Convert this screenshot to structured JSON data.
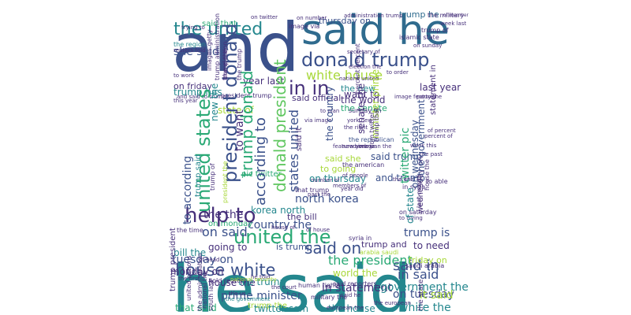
{
  "palette": {
    "purple": "#46307a",
    "indigo": "#3b518b",
    "blue": "#2f6b8e",
    "teal": "#24878e",
    "green": "#2aa975",
    "lime": "#60c760",
    "yellowgreen": "#a8d83a",
    "yellow": "#dfe318"
  },
  "words": [
    {
      "t": "and",
      "c": "indigo",
      "r": 0
    },
    {
      "t": "he said",
      "c": "teal",
      "r": 0
    },
    {
      "t": "said he",
      "c": "blue",
      "r": 0
    },
    {
      "t": "the united",
      "c": "teal",
      "r": 0
    },
    {
      "t": "donald trump",
      "c": "indigo",
      "r": 0
    },
    {
      "t": "white house",
      "c": "yellowgreen",
      "r": 0
    },
    {
      "t": "in in",
      "c": "purple",
      "r": 0
    },
    {
      "t": "united the",
      "c": "green",
      "r": 0
    },
    {
      "t": "house white",
      "c": "indigo",
      "r": 0
    },
    {
      "t": "said on",
      "c": "indigo",
      "r": 0
    },
    {
      "t": "on said",
      "c": "indigo",
      "r": 0
    },
    {
      "t": "said in",
      "c": "indigo",
      "r": 0
    },
    {
      "t": "in said",
      "c": "indigo",
      "r": 0
    },
    {
      "t": "on tuesday",
      "c": "indigo",
      "r": 0
    },
    {
      "t": "white the",
      "c": "teal",
      "r": 0
    },
    {
      "t": "the president",
      "c": "green",
      "r": 0
    },
    {
      "t": "tuesday on",
      "c": "indigo",
      "r": 0
    },
    {
      "t": "country the",
      "c": "indigo",
      "r": 0
    },
    {
      "t": "the the",
      "c": "purple",
      "r": 0
    },
    {
      "t": "prime minister",
      "c": "indigo",
      "r": 0
    },
    {
      "t": "house the",
      "c": "purple",
      "r": 0
    },
    {
      "t": "the trump",
      "c": "teal",
      "r": 0
    },
    {
      "t": "in statement",
      "c": "purple",
      "r": 0
    },
    {
      "t": "world the",
      "c": "yellowgreen",
      "r": 0
    },
    {
      "t": "government the",
      "c": "teal",
      "r": 0
    },
    {
      "t": "it said",
      "c": "yellowgreen",
      "r": 0
    },
    {
      "t": "trump the",
      "c": "yellowgreen",
      "r": 0
    },
    {
      "t": "that said",
      "c": "green",
      "r": 0
    },
    {
      "t": "twitter com",
      "c": "teal",
      "r": 0
    },
    {
      "t": "the house",
      "c": "teal",
      "r": 0
    },
    {
      "t": "to need",
      "c": "purple",
      "r": 0
    },
    {
      "t": "friday on",
      "c": "yellowgreen",
      "r": 0
    },
    {
      "t": "trump is",
      "c": "indigo",
      "r": 0
    },
    {
      "t": "going to",
      "c": "purple",
      "r": 0
    },
    {
      "t": "is trump",
      "c": "indigo",
      "r": 0
    },
    {
      "t": "trump and",
      "c": "purple",
      "r": 0
    },
    {
      "t": "bill the",
      "c": "teal",
      "r": 0
    },
    {
      "t": "monday on",
      "c": "purple",
      "r": 0
    },
    {
      "t": "on monday",
      "c": "green",
      "r": 0
    },
    {
      "t": "the bill",
      "c": "purple",
      "r": 0
    },
    {
      "t": "korea north",
      "c": "teal",
      "r": 0
    },
    {
      "t": "north korea",
      "c": "indigo",
      "r": 0
    },
    {
      "t": "on thursday",
      "c": "teal",
      "r": 0
    },
    {
      "t": "and trump",
      "c": "indigo",
      "r": 0
    },
    {
      "t": "said trump",
      "c": "indigo",
      "r": 0
    },
    {
      "t": "to going",
      "c": "yellowgreen",
      "r": 0
    },
    {
      "t": "said she",
      "c": "yellowgreen",
      "r": 0
    },
    {
      "t": "the world",
      "c": "purple",
      "r": 0
    },
    {
      "t": "the senate",
      "c": "green",
      "r": 0
    },
    {
      "t": "the new",
      "c": "teal",
      "r": 0
    },
    {
      "t": "want to",
      "c": "purple",
      "r": 0
    },
    {
      "t": "said official",
      "c": "purple",
      "r": 0
    },
    {
      "t": "year last",
      "c": "purple",
      "r": 0
    },
    {
      "t": "last year",
      "c": "purple",
      "r": 0
    },
    {
      "t": "on friday",
      "c": "purple",
      "r": 0
    },
    {
      "t": "trump has",
      "c": "teal",
      "r": 0
    },
    {
      "t": "she said",
      "c": "indigo",
      "r": 0
    },
    {
      "t": "thursday on",
      "c": "indigo",
      "r": 0
    },
    {
      "t": "said that",
      "c": "green",
      "r": 0
    },
    {
      "t": "trump he",
      "c": "blue",
      "r": 0
    },
    {
      "t": "of member",
      "c": "purple",
      "r": 0
    },
    {
      "t": "the military",
      "c": "purple",
      "r": 0
    },
    {
      "t": "the region",
      "c": "teal",
      "r": 0
    },
    {
      "t": "president trump",
      "c": "purple",
      "r": 0
    },
    {
      "t": "state of",
      "c": "yellowgreen",
      "r": 0
    },
    {
      "t": "pic twitter",
      "c": "green",
      "r": 0
    },
    {
      "t": "that trump",
      "c": "purple",
      "r": 0
    },
    {
      "t": "american the",
      "c": "purple",
      "r": 0
    },
    {
      "t": "the american",
      "c": "purple",
      "r": 0
    },
    {
      "t": "the republican",
      "c": "indigo",
      "r": 0
    },
    {
      "t": "new york",
      "c": "purple",
      "r": 0
    },
    {
      "t": "york new",
      "c": "purple",
      "r": 0
    },
    {
      "t": "the right",
      "c": "purple",
      "r": 0
    },
    {
      "t": "sunday on",
      "c": "purple",
      "r": 0
    },
    {
      "t": "in syria",
      "c": "purple",
      "r": 0
    },
    {
      "t": "the end",
      "c": "purple",
      "r": 0
    },
    {
      "t": "to able",
      "c": "purple",
      "r": 0
    },
    {
      "t": "year old",
      "c": "purple",
      "r": 0
    },
    {
      "t": "past the",
      "c": "purple",
      "r": 0
    },
    {
      "t": "number of",
      "c": "purple",
      "r": 0
    },
    {
      "t": "members of",
      "c": "purple",
      "r": 0
    },
    {
      "t": "of people",
      "c": "purple",
      "r": 0
    },
    {
      "t": "featured image",
      "c": "purple",
      "r": 0
    },
    {
      "t": "via image",
      "c": "purple",
      "r": 0
    },
    {
      "t": "he told",
      "c": "purple",
      "r": 0
    },
    {
      "t": "the court",
      "c": "purple",
      "r": 0
    },
    {
      "t": "told reuters",
      "c": "purple",
      "r": 0
    },
    {
      "t": "the first",
      "c": "purple",
      "r": 0
    },
    {
      "t": "the time",
      "c": "purple",
      "r": 0
    },
    {
      "t": "house of",
      "c": "purple",
      "r": 0
    },
    {
      "t": "of house",
      "c": "purple",
      "r": 0
    },
    {
      "t": "syria in",
      "c": "purple",
      "r": 0
    },
    {
      "t": "arabia saudi",
      "c": "yellowgreen",
      "r": 0
    },
    {
      "t": "saudi arabia",
      "c": "purple",
      "r": 0
    },
    {
      "t": "on saturday",
      "c": "purple",
      "r": 0
    },
    {
      "t": "to trying",
      "c": "purple",
      "r": 0
    },
    {
      "t": "trying to",
      "c": "purple",
      "r": 0
    },
    {
      "t": "said he",
      "c": "purple",
      "r": 0
    },
    {
      "t": "european the",
      "c": "purple",
      "r": 0
    },
    {
      "t": "the european",
      "c": "purple",
      "r": 0
    },
    {
      "t": "military the",
      "c": "purple",
      "r": 0
    },
    {
      "t": "human rights",
      "c": "purple",
      "r": 0
    },
    {
      "t": "national security",
      "c": "yellowgreen",
      "r": 0
    },
    {
      "t": "of head",
      "c": "purple",
      "r": 0
    },
    {
      "t": "the government",
      "c": "teal",
      "r": 0
    },
    {
      "t": "the us",
      "c": "purple",
      "r": 0
    },
    {
      "t": "said reporters",
      "c": "purple",
      "r": 0
    },
    {
      "t": "image featured",
      "c": "purple",
      "r": 0
    },
    {
      "t": "of percent",
      "c": "purple",
      "r": 0
    },
    {
      "t": "percent of",
      "c": "purple",
      "r": 0
    },
    {
      "t": "week this",
      "c": "purple",
      "r": 0
    },
    {
      "t": "the past",
      "c": "purple",
      "r": 0
    },
    {
      "t": "party the",
      "c": "purple",
      "r": 0
    },
    {
      "t": "week last",
      "c": "purple",
      "r": 0
    },
    {
      "t": "trump of",
      "c": "purple",
      "r": 0
    },
    {
      "t": "islamic state",
      "c": "purple",
      "r": 0
    },
    {
      "t": "on sunday",
      "c": "purple",
      "r": 0
    },
    {
      "t": "to order",
      "c": "purple",
      "r": 0
    },
    {
      "t": "election the",
      "c": "purple",
      "r": 0
    },
    {
      "t": "nations united",
      "c": "purple",
      "r": 0
    },
    {
      "t": "secretary of",
      "c": "purple",
      "r": 0
    },
    {
      "t": "administration trump",
      "c": "purple",
      "r": 0
    },
    {
      "t": "on number",
      "c": "purple",
      "r": 0
    },
    {
      "t": "image via",
      "c": "purple",
      "r": 0
    },
    {
      "t": "on twitter",
      "c": "purple",
      "r": 0
    },
    {
      "t": "to work",
      "c": "purple",
      "r": 0
    },
    {
      "t": "this year",
      "c": "purple",
      "r": 0
    },
    {
      "t": "and said",
      "c": "purple",
      "r": 0
    },
    {
      "t": "reuters told",
      "c": "purple",
      "r": 0
    },
    {
      "t": "to trump",
      "c": "purple",
      "r": 0
    },
    {
      "t": "to plan",
      "c": "purple",
      "r": 0
    },
    {
      "t": "help to",
      "c": "purple",
      "r": 0
    },
    {
      "t": "united states",
      "c": "green",
      "r": 90
    },
    {
      "t": "president donald",
      "c": "indigo",
      "r": 90
    },
    {
      "t": "trump donald",
      "c": "green",
      "r": 90
    },
    {
      "t": "according to",
      "c": "indigo",
      "r": 90
    },
    {
      "t": "donald president",
      "c": "lime",
      "r": 90
    },
    {
      "t": "states united",
      "c": "indigo",
      "r": 90
    },
    {
      "t": "to according",
      "c": "indigo",
      "r": 90
    },
    {
      "t": "the country",
      "c": "indigo",
      "r": 90
    },
    {
      "t": "senate the",
      "c": "purple",
      "r": 90
    },
    {
      "t": "minister prime",
      "c": "yellowgreen",
      "r": 90
    },
    {
      "t": "twitter pic",
      "c": "green",
      "r": 90
    },
    {
      "t": "on wednesday",
      "c": "indigo",
      "r": 90
    },
    {
      "t": "wednesday on",
      "c": "purple",
      "r": 90
    },
    {
      "t": "statement in",
      "c": "purple",
      "r": 90
    },
    {
      "t": "the government",
      "c": "indigo",
      "r": 90
    },
    {
      "t": "of state",
      "c": "teal",
      "r": 90
    },
    {
      "t": "trump said",
      "c": "teal",
      "r": 90
    },
    {
      "t": "to want",
      "c": "purple",
      "r": 90
    },
    {
      "t": "president the",
      "c": "yellowgreen",
      "r": 90
    },
    {
      "t": "trump that",
      "c": "purple",
      "r": 90
    },
    {
      "t": "new the",
      "c": "teal",
      "r": 90
    },
    {
      "t": "trump president",
      "c": "purple",
      "r": 90
    },
    {
      "t": "said it",
      "c": "purple",
      "r": 90
    },
    {
      "t": "com twitter",
      "c": "purple",
      "r": 90
    },
    {
      "t": "the election",
      "c": "purple",
      "r": 90
    },
    {
      "t": "trump of",
      "c": "purple",
      "r": 90
    },
    {
      "t": "percent percent",
      "c": "purple",
      "r": 90
    },
    {
      "t": "united nations",
      "c": "purple",
      "r": 90
    },
    {
      "t": "south last",
      "c": "purple",
      "r": 90
    },
    {
      "t": "national the",
      "c": "purple",
      "r": 90
    },
    {
      "t": "the administration",
      "c": "purple",
      "r": 90
    },
    {
      "t": "trump administration",
      "c": "purple",
      "r": 90
    },
    {
      "t": "trump the",
      "c": "purple",
      "r": 90
    },
    {
      "t": "the trump",
      "c": "purple",
      "r": 90
    },
    {
      "t": "images getty",
      "c": "purple",
      "r": 90
    },
    {
      "t": "house the",
      "c": "purple",
      "r": 90
    },
    {
      "t": "last month",
      "c": "purple",
      "r": 90
    },
    {
      "t": "the state",
      "c": "purple",
      "r": 90
    },
    {
      "t": "has trump",
      "c": "yellowgreen",
      "r": 90
    }
  ]
}
